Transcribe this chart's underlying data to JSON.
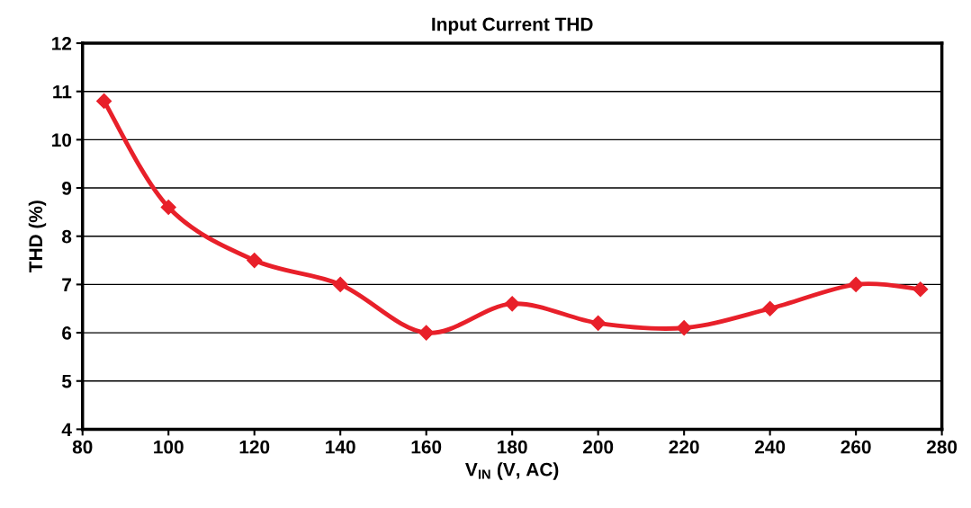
{
  "chart_data": {
    "type": "line",
    "title": "Input Current THD",
    "xlabel": "V$_{IN}$ (V, AC)",
    "ylabel": "THD (%)",
    "x": [
      85,
      100,
      120,
      140,
      160,
      180,
      200,
      220,
      240,
      260,
      275
    ],
    "series": [
      {
        "color": "#e8202a",
        "values": [
          10.8,
          8.6,
          7.5,
          7.0,
          6.0,
          6.6,
          6.2,
          6.1,
          6.5,
          7.0,
          6.9
        ]
      }
    ],
    "xlim": [
      80,
      280
    ],
    "xticks": [
      80,
      100,
      120,
      140,
      160,
      180,
      200,
      220,
      240,
      260,
      280
    ],
    "ylim": [
      4,
      12
    ],
    "yticks": [
      4,
      5,
      6,
      7,
      8,
      9,
      10,
      11,
      12
    ],
    "grid": "y",
    "marker": "diamond",
    "line_style": "solid",
    "legend": false
  }
}
